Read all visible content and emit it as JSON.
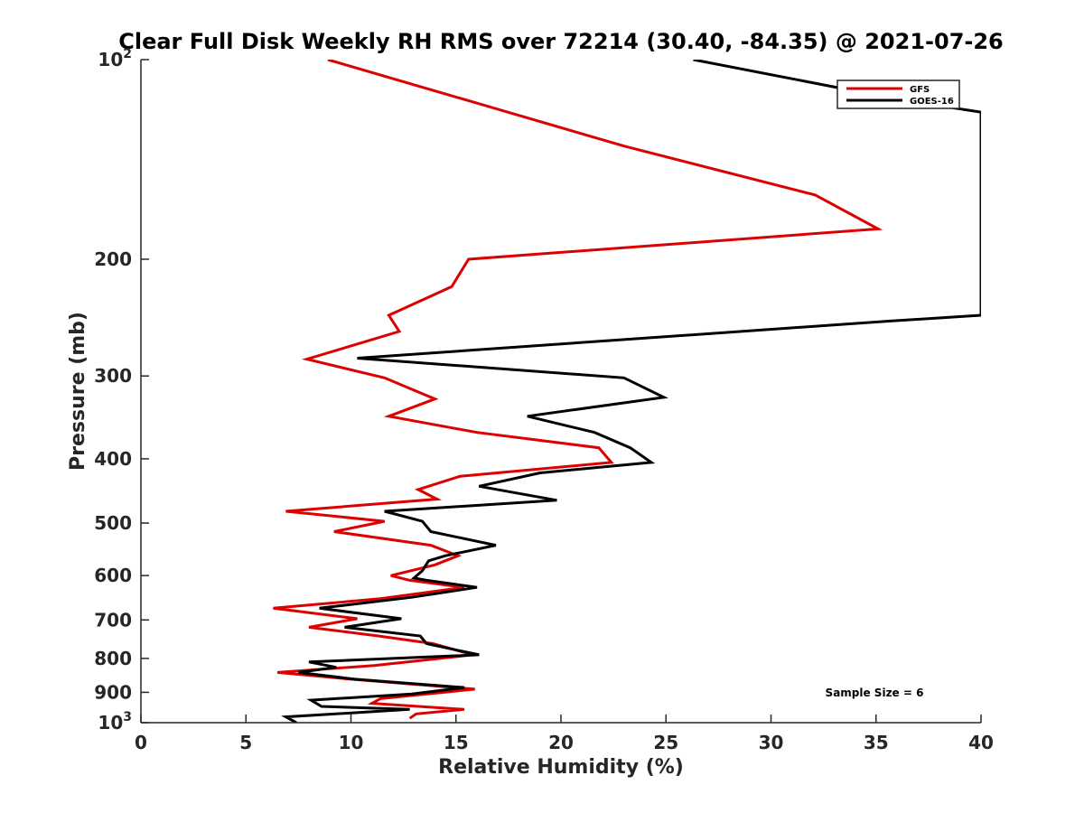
{
  "chart_data": {
    "type": "line",
    "title": "Clear Full Disk Weekly RH RMS over 72214 (30.40, -84.35) @ 2021-07-26",
    "xlabel": "Relative Humidity (%)",
    "ylabel": "Pressure (mb)",
    "xlim": [
      0,
      40
    ],
    "ylim": [
      100,
      1000
    ],
    "yscale": "log",
    "yreverse": true,
    "x_ticks": [
      0,
      5,
      10,
      15,
      20,
      25,
      30,
      35,
      40
    ],
    "y_ticks": [
      {
        "value": 100,
        "base": "10",
        "exp": "2"
      },
      {
        "value": 200,
        "label": "200"
      },
      {
        "value": 300,
        "label": "300"
      },
      {
        "value": 400,
        "label": "400"
      },
      {
        "value": 500,
        "label": "500"
      },
      {
        "value": 600,
        "label": "600"
      },
      {
        "value": 700,
        "label": "700"
      },
      {
        "value": 800,
        "label": "800"
      },
      {
        "value": 900,
        "label": "900"
      },
      {
        "value": 1000,
        "base": "10",
        "exp": "3"
      }
    ],
    "legend_position": "top-right",
    "annotation": "Sample Size = 6",
    "series": [
      {
        "name": "GFS",
        "color": "#dd0000",
        "points": [
          [
            8.9,
            100
          ],
          [
            23.0,
            135
          ],
          [
            32.1,
            160
          ],
          [
            35.1,
            180
          ],
          [
            15.6,
            200
          ],
          [
            14.8,
            220
          ],
          [
            11.8,
            243
          ],
          [
            12.3,
            257
          ],
          [
            7.9,
            283
          ],
          [
            11.6,
            302
          ],
          [
            14.0,
            325
          ],
          [
            11.8,
            345
          ],
          [
            16.0,
            365
          ],
          [
            21.8,
            385
          ],
          [
            22.4,
            405
          ],
          [
            15.2,
            425
          ],
          [
            13.2,
            445
          ],
          [
            14.1,
            460
          ],
          [
            6.9,
            480
          ],
          [
            11.6,
            497
          ],
          [
            9.2,
            515
          ],
          [
            13.8,
            540
          ],
          [
            15.1,
            560
          ],
          [
            14.0,
            578
          ],
          [
            11.9,
            600
          ],
          [
            12.8,
            610
          ],
          [
            15.4,
            625
          ],
          [
            11.4,
            650
          ],
          [
            6.3,
            672
          ],
          [
            10.3,
            697
          ],
          [
            8.0,
            718
          ],
          [
            11.3,
            740
          ],
          [
            13.9,
            760
          ],
          [
            15.8,
            790
          ],
          [
            11.1,
            820
          ],
          [
            6.5,
            840
          ],
          [
            10.0,
            860
          ],
          [
            15.9,
            890
          ],
          [
            11.4,
            920
          ],
          [
            11.0,
            935
          ],
          [
            15.4,
            955
          ],
          [
            13.1,
            970
          ],
          [
            12.8,
            985
          ]
        ]
      },
      {
        "name": "GOES-16",
        "color": "#000000",
        "points": [
          [
            26.3,
            100
          ],
          [
            36.2,
            115
          ],
          [
            40.0,
            120
          ],
          [
            40.0,
            243
          ],
          [
            35.6,
            248
          ],
          [
            10.3,
            282
          ],
          [
            23.0,
            302
          ],
          [
            24.9,
            323
          ],
          [
            18.4,
            345
          ],
          [
            21.6,
            365
          ],
          [
            23.3,
            385
          ],
          [
            24.3,
            405
          ],
          [
            19.0,
            420
          ],
          [
            16.1,
            440
          ],
          [
            19.8,
            462
          ],
          [
            11.6,
            480
          ],
          [
            13.4,
            497
          ],
          [
            13.8,
            515
          ],
          [
            16.9,
            540
          ],
          [
            14.5,
            560
          ],
          [
            13.7,
            570
          ],
          [
            13.4,
            590
          ],
          [
            13.0,
            605
          ],
          [
            13.6,
            610
          ],
          [
            16.0,
            625
          ],
          [
            12.9,
            647
          ],
          [
            8.5,
            672
          ],
          [
            12.4,
            697
          ],
          [
            9.7,
            718
          ],
          [
            13.3,
            740
          ],
          [
            13.6,
            760
          ],
          [
            16.1,
            790
          ],
          [
            8.0,
            810
          ],
          [
            9.3,
            825
          ],
          [
            7.5,
            840
          ],
          [
            10.2,
            860
          ],
          [
            15.4,
            885
          ],
          [
            12.9,
            905
          ],
          [
            8.1,
            925
          ],
          [
            8.6,
            945
          ],
          [
            12.8,
            955
          ],
          [
            6.9,
            980
          ],
          [
            7.4,
            1000
          ]
        ]
      }
    ]
  }
}
